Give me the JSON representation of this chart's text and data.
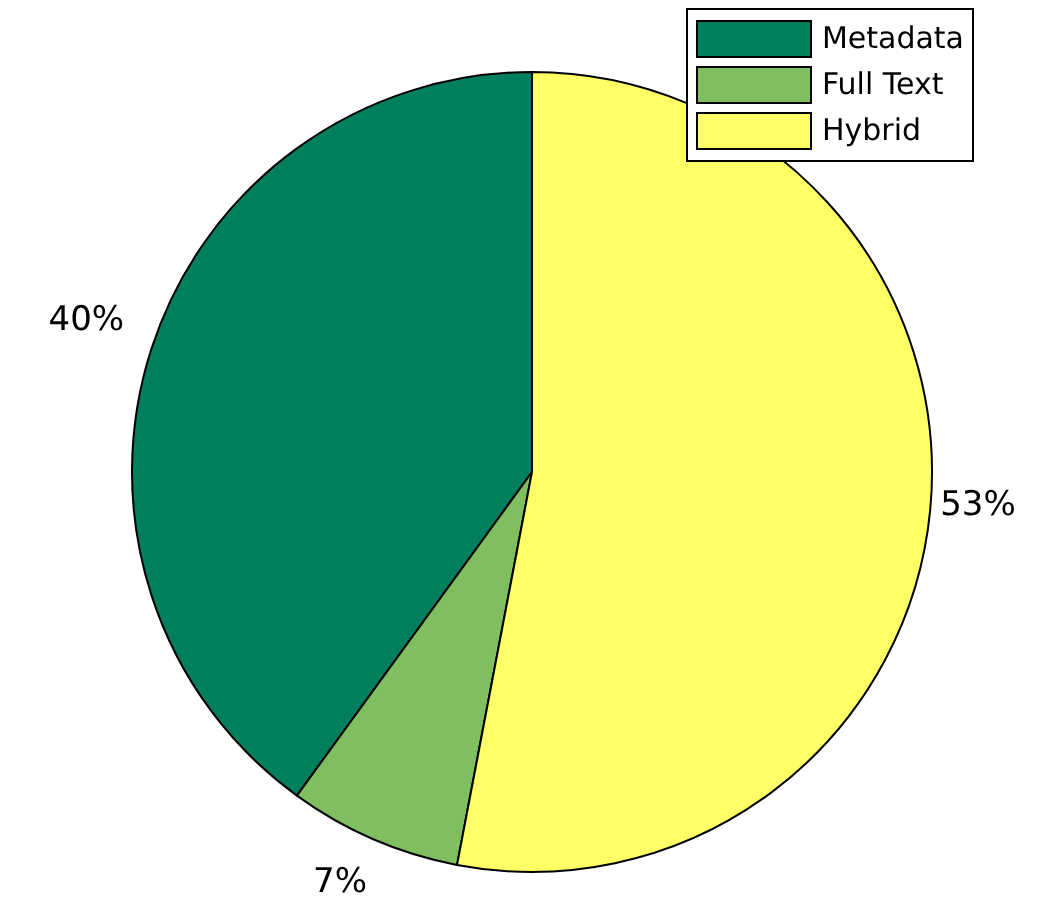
{
  "chart_data": {
    "type": "pie",
    "categories": [
      "Metadata",
      "Full Text",
      "Hybrid"
    ],
    "values": [
      40,
      7,
      53
    ],
    "value_labels": [
      "40%",
      "7%",
      "53%"
    ],
    "colors": [
      "#007f5f",
      "#7fbf5f",
      "#ffff66"
    ],
    "legend": "top right"
  }
}
